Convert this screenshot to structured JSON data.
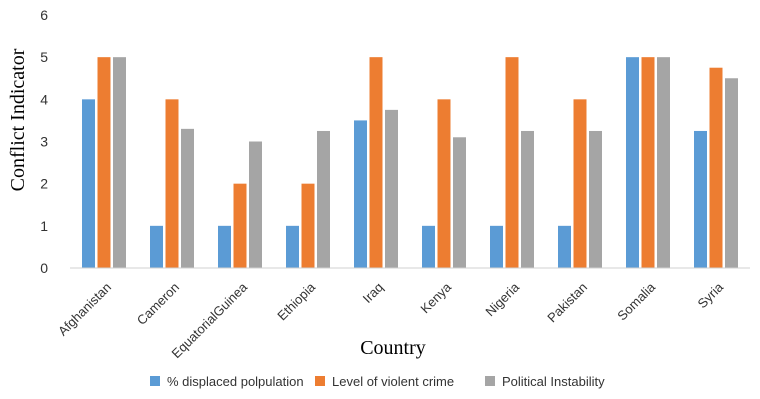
{
  "chart_data": {
    "type": "bar",
    "title": "",
    "xlabel": "Country",
    "ylabel": "Conflict Indicator",
    "ylim": [
      0,
      6
    ],
    "yticks": [
      "0",
      "1",
      "2",
      "3",
      "4",
      "5",
      "6"
    ],
    "grid": false,
    "legend_position": "bottom",
    "categories": [
      "Afghanistan",
      "Cameron",
      "EquatorialGuinea",
      "Ethiopia",
      "Iraq",
      "Kenya",
      "Nigeria",
      "Pakistan",
      "Somalia",
      "Syria"
    ],
    "series": [
      {
        "name": "% displaced polpulation",
        "color": "#5B9BD5",
        "values": [
          4,
          1,
          1,
          1,
          3.5,
          1,
          1,
          1,
          5,
          3.25
        ]
      },
      {
        "name": "Level of violent crime",
        "color": "#ED7D31",
        "values": [
          5,
          4,
          2,
          2,
          5,
          4,
          5,
          4,
          5,
          4.75
        ]
      },
      {
        "name": "Political Instability",
        "color": "#A5A5A5",
        "values": [
          5,
          3.3,
          3,
          3.25,
          3.75,
          3.1,
          3.25,
          3.25,
          5,
          4.5
        ]
      }
    ]
  }
}
